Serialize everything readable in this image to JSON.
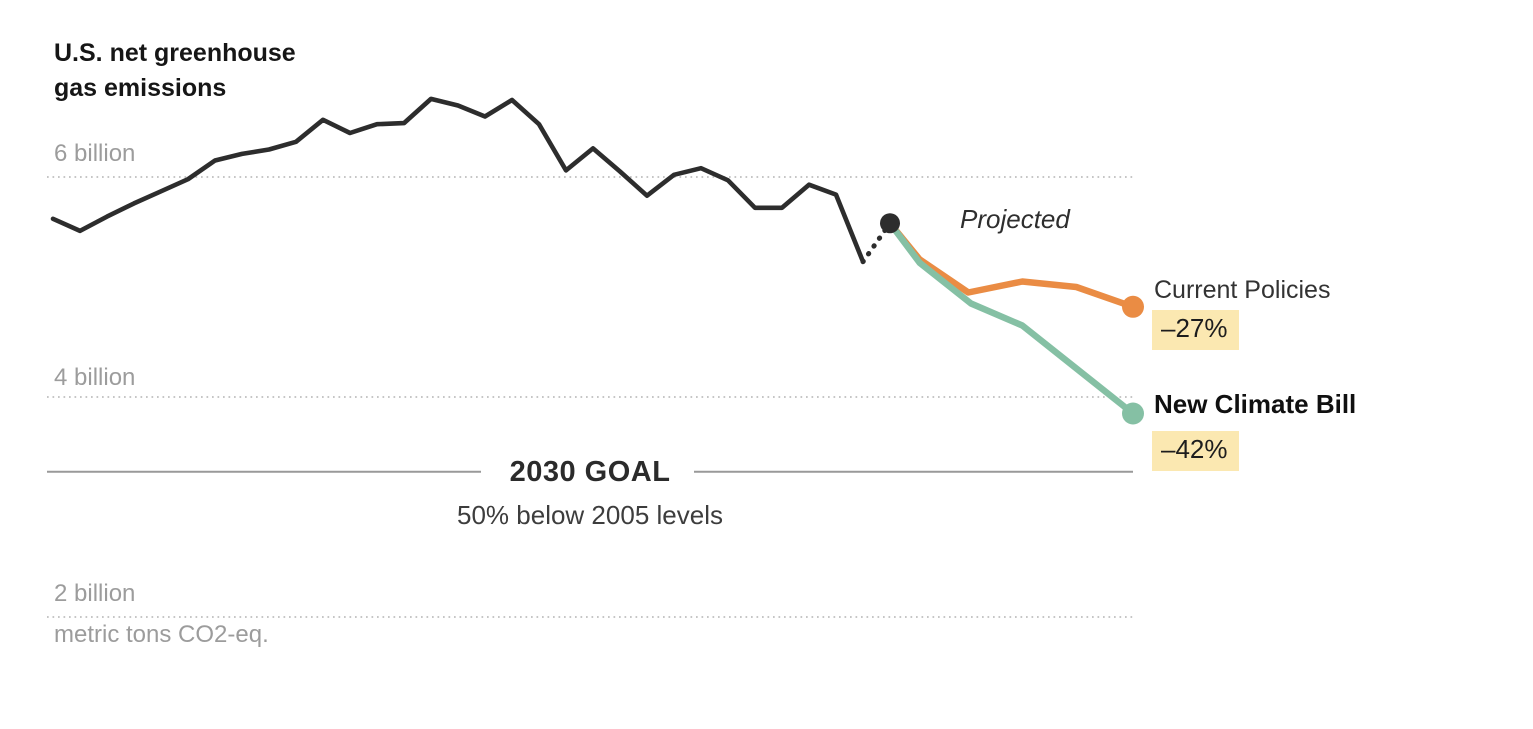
{
  "colors": {
    "historical": "#2d2d2d",
    "current_policies": "#ea8c44",
    "new_climate_bill": "#85c0a4",
    "highlight": "#fbe8b1",
    "gridline": "#bfbfbf",
    "muted_text": "#9c9c9c",
    "goal_line": "#999999"
  },
  "chart_data": {
    "type": "line",
    "title": "U.S. net greenhouse gas emissions",
    "title_line1": "U.S. net greenhouse",
    "title_line2": "gas emissions",
    "unit_label": "metric tons CO2-eq.",
    "annotations": {
      "projected": "Projected"
    },
    "x_range": [
      1990,
      2030
    ],
    "y_range_billions": [
      1.8,
      6.9
    ],
    "grid": "dotted-horizontal",
    "y_gridlines": [
      {
        "value": 6,
        "label": "6 billion"
      },
      {
        "value": 4,
        "label": "4 billion"
      },
      {
        "value": 2,
        "label": "2 billion"
      }
    ],
    "goal": {
      "label": "2030 GOAL",
      "sublabel": "50% below 2005 levels",
      "value": 3.32
    },
    "series": [
      {
        "name": "Historical emissions",
        "role": "historical",
        "color": "#2d2d2d",
        "style": "solid",
        "end_dot": false,
        "points": [
          [
            1990,
            5.62
          ],
          [
            1991,
            5.51
          ],
          [
            1992,
            5.64
          ],
          [
            1993,
            5.76
          ],
          [
            1994,
            5.87
          ],
          [
            1995,
            5.98
          ],
          [
            1996,
            6.15
          ],
          [
            1997,
            6.21
          ],
          [
            1998,
            6.25
          ],
          [
            1999,
            6.32
          ],
          [
            2000,
            6.52
          ],
          [
            2001,
            6.4
          ],
          [
            2002,
            6.48
          ],
          [
            2003,
            6.49
          ],
          [
            2004,
            6.71
          ],
          [
            2005,
            6.65
          ],
          [
            2006,
            6.55
          ],
          [
            2007,
            6.7
          ],
          [
            2008,
            6.48
          ],
          [
            2009,
            6.06
          ],
          [
            2010,
            6.26
          ],
          [
            2011,
            6.05
          ],
          [
            2012,
            5.83
          ],
          [
            2013,
            6.02
          ],
          [
            2014,
            6.08
          ],
          [
            2015,
            5.97
          ],
          [
            2016,
            5.72
          ],
          [
            2017,
            5.72
          ],
          [
            2018,
            5.93
          ],
          [
            2019,
            5.84
          ],
          [
            2020,
            5.23
          ]
        ]
      },
      {
        "name": "2021 estimate connector",
        "role": "estimate",
        "color": "#2d2d2d",
        "style": "dashed",
        "end_dot": true,
        "points": [
          [
            2020,
            5.23
          ],
          [
            2021,
            5.58
          ]
        ]
      },
      {
        "name": "Current Policies",
        "role": "projection",
        "label": "Current Policies",
        "badge": "–27%",
        "color": "#ea8c44",
        "style": "solid",
        "end_dot": true,
        "points": [
          [
            2021,
            5.58
          ],
          [
            2022.1,
            5.25
          ],
          [
            2023.9,
            4.95
          ],
          [
            2025.9,
            5.05
          ],
          [
            2027.9,
            5.0
          ],
          [
            2030,
            4.82
          ]
        ]
      },
      {
        "name": "New Climate Bill",
        "role": "projection",
        "label": "New Climate Bill",
        "badge": "–42%",
        "color": "#85c0a4",
        "style": "solid",
        "end_dot": true,
        "points": [
          [
            2021,
            5.58
          ],
          [
            2022.1,
            5.22
          ],
          [
            2024,
            4.85
          ],
          [
            2025.9,
            4.65
          ],
          [
            2030,
            3.85
          ]
        ]
      }
    ]
  }
}
